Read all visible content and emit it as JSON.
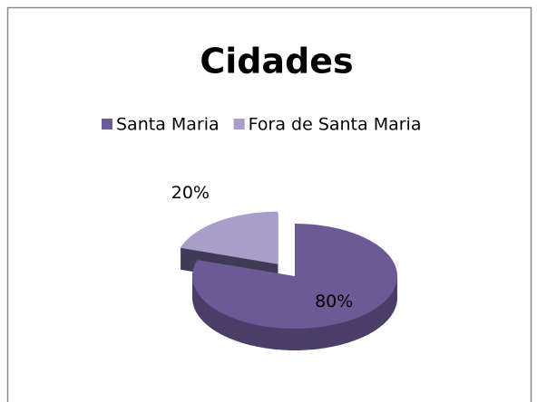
{
  "chart_data": {
    "type": "pie",
    "title": "Cidades",
    "categories": [
      "Santa Maria",
      "Fora de Santa Maria"
    ],
    "values": [
      80,
      20
    ],
    "value_labels": [
      "80%",
      "20%"
    ],
    "colors": [
      "#6b5a96",
      "#a99dc9"
    ],
    "legend": "top"
  }
}
